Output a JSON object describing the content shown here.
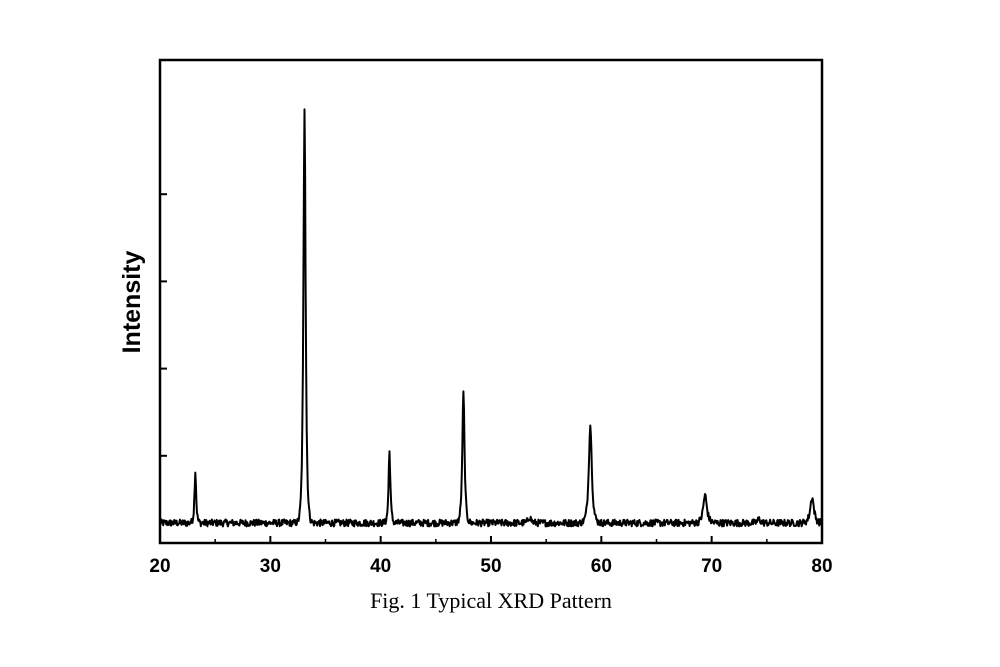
{
  "chart_data": {
    "type": "line",
    "title": "",
    "caption": "Fig. 1 Typical XRD Pattern",
    "xlabel": "",
    "ylabel": "Intensity",
    "xlim": [
      20,
      80
    ],
    "ylim": [
      0,
      100
    ],
    "x_ticks": [
      20,
      30,
      40,
      50,
      60,
      70,
      80
    ],
    "y_ticks_labeled": false,
    "y_tick_values": [
      20,
      40,
      60,
      80
    ],
    "grid": false,
    "legend": "none",
    "line_color": "#000000",
    "baseline": 4.6,
    "peaks": [
      {
        "two_theta": 23.2,
        "intensity": 16.5
      },
      {
        "two_theta": 33.1,
        "intensity": 100
      },
      {
        "two_theta": 40.8,
        "intensity": 21
      },
      {
        "two_theta": 47.5,
        "intensity": 34.5
      },
      {
        "two_theta": 53.5,
        "intensity": 6
      },
      {
        "two_theta": 59.0,
        "intensity": 27
      },
      {
        "two_theta": 69.4,
        "intensity": 11
      },
      {
        "two_theta": 74.3,
        "intensity": 5.5
      },
      {
        "two_theta": 79.1,
        "intensity": 10.5
      }
    ]
  }
}
